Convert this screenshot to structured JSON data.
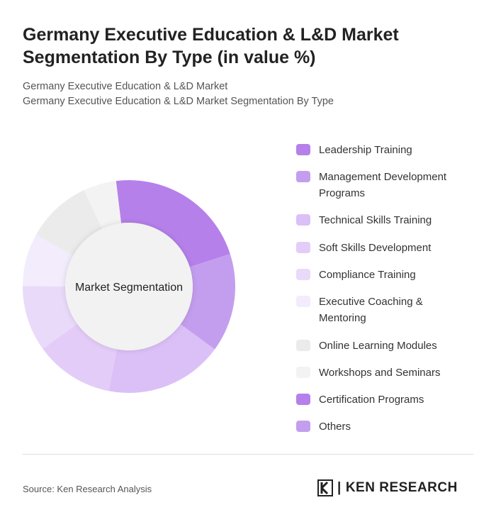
{
  "title": "Germany Executive Education & L&D Market Segmentation By Type (in value %)",
  "subtitle1": "Germany Executive Education & L&D Market",
  "subtitle2": "Germany Executive Education & L&D Market Segmentation By Type",
  "source": "Source: Ken Research Analysis",
  "logo_text": "KEN RESEARCH",
  "chart_data": {
    "type": "pie",
    "donut": true,
    "center_label": "Market Segmentation",
    "legend_position": "right",
    "categories": [
      "Leadership Training",
      "Management Development Programs",
      "Technical Skills Training",
      "Soft Skills Development",
      "Compliance Training",
      "Executive Coaching & Mentoring",
      "Online Learning Modules",
      "Workshops and Seminars",
      "Certification Programs",
      "Others"
    ],
    "values": [
      22,
      15,
      18,
      12,
      10,
      8,
      10,
      5,
      0,
      0
    ],
    "colors": [
      "#B580EA",
      "#C49EEE",
      "#DBC0F7",
      "#E3CDF8",
      "#E9DAFA",
      "#F3ECFC",
      "#EBEBEB",
      "#F3F3F3",
      "#B580EA",
      "#C49EEE"
    ]
  }
}
